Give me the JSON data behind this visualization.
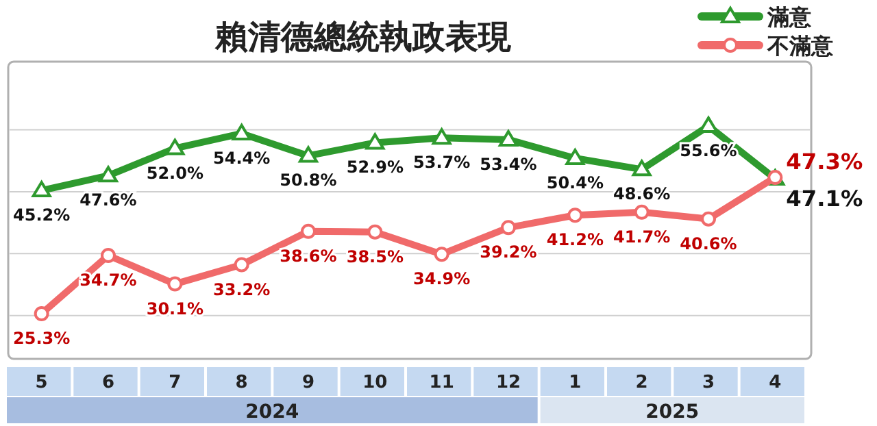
{
  "chart_data": {
    "type": "line",
    "title": "賴清德總統執政表現",
    "categories": [
      "5",
      "6",
      "7",
      "8",
      "9",
      "10",
      "11",
      "12",
      "1",
      "2",
      "3",
      "4"
    ],
    "series": [
      {
        "name": "滿意",
        "color": "#2e9a2e",
        "marker": "triangle",
        "values": [
          45.2,
          47.6,
          52.0,
          54.4,
          50.8,
          52.9,
          53.7,
          53.4,
          50.4,
          48.6,
          55.6,
          47.1
        ],
        "value_labels": [
          "45.2%",
          "47.6%",
          "52.0%",
          "54.4%",
          "50.8%",
          "52.9%",
          "53.7%",
          "53.4%",
          "50.4%",
          "48.6%",
          "55.6%",
          "47.1%"
        ]
      },
      {
        "name": "不滿意",
        "color": "#f06a6a",
        "marker": "circle",
        "values": [
          25.3,
          34.7,
          30.1,
          33.2,
          38.6,
          38.5,
          34.9,
          39.2,
          41.2,
          41.7,
          40.6,
          47.3
        ],
        "value_labels": [
          "25.3%",
          "34.7%",
          "30.1%",
          "33.2%",
          "38.6%",
          "38.5%",
          "34.9%",
          "39.2%",
          "41.2%",
          "41.7%",
          "40.6%",
          "47.3%"
        ]
      }
    ],
    "annotations": [
      "2024",
      "2025"
    ],
    "ylim": [
      18,
      66
    ],
    "yticks": [
      {
        "value": 25,
        "label": null
      },
      {
        "value": 35,
        "label": null
      },
      {
        "value": 45,
        "label": null
      },
      {
        "value": 55,
        "label": null
      }
    ],
    "tick_labels": "x",
    "grid": "y",
    "legend": "top right"
  }
}
